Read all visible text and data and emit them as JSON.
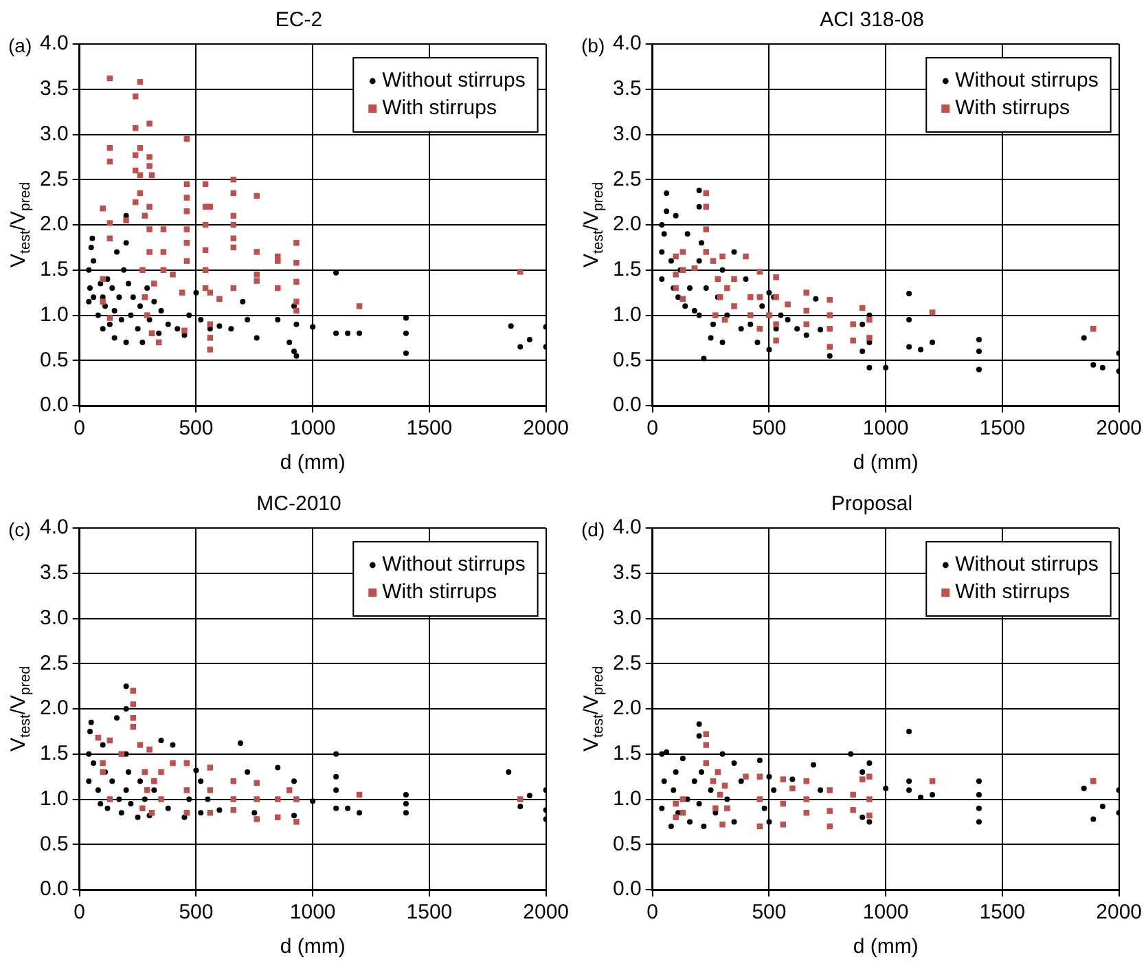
{
  "chart_data": [
    {
      "type": "scatter",
      "title": "EC-2",
      "xlabel": "d (mm)",
      "ylabel": "V$_{test}$/V$_{pred}$",
      "annotations": [
        "(a)"
      ],
      "xlim": [
        0,
        2000
      ],
      "xticks": [
        0,
        500,
        1000,
        1500,
        2000
      ],
      "ylim": [
        0,
        4
      ],
      "yticks": [
        {
          "value": 0,
          "label": "0.0"
        },
        0.5,
        {
          "value": 1,
          "label": "1.0"
        },
        1.5,
        {
          "value": 2,
          "label": "2.0"
        },
        2.5,
        {
          "value": 3,
          "label": "3.0"
        },
        3.5,
        {
          "value": 4,
          "label": "4.0"
        }
      ],
      "grid": true,
      "legend": "top right",
      "series": [
        {
          "name": "Without stirrups",
          "color": "#000000",
          "marker": "circle",
          "x": [
            40,
            40,
            45,
            50,
            55,
            60,
            60,
            80,
            90,
            100,
            100,
            110,
            120,
            130,
            140,
            150,
            150,
            160,
            170,
            180,
            190,
            200,
            200,
            200,
            210,
            220,
            230,
            250,
            260,
            270,
            290,
            300,
            320,
            340,
            350,
            380,
            420,
            450,
            470,
            500,
            520,
            560,
            600,
            650,
            700,
            720,
            760,
            850,
            900,
            920,
            920,
            930,
            930,
            1000,
            1100,
            1100,
            1150,
            1200,
            1400,
            1400,
            1400,
            1850,
            1890,
            1930,
            2000,
            2000
          ],
          "values": [
            1.15,
            1.5,
            1.3,
            1.75,
            1.85,
            1.6,
            1.2,
            1.0,
            1.35,
            0.85,
            1.2,
            1.1,
            1.4,
            0.9,
            1.3,
            0.75,
            1.05,
            1.7,
            1.2,
            0.95,
            1.5,
            2.1,
            1.8,
            0.7,
            1.35,
            1.0,
            1.2,
            0.85,
            1.1,
            0.7,
            1.3,
            0.95,
            1.15,
            0.8,
            1.05,
            0.9,
            0.85,
            0.78,
            1.0,
            1.25,
            0.95,
            0.85,
            0.88,
            0.85,
            1.15,
            0.95,
            0.75,
            0.95,
            0.7,
            1.1,
            0.6,
            0.9,
            0.55,
            0.87,
            1.47,
            0.8,
            0.8,
            0.8,
            0.58,
            0.8,
            0.97,
            0.88,
            0.65,
            0.73,
            0.65,
            0.87
          ]
        },
        {
          "name": "With stirrups",
          "color": "#c0504d",
          "marker": "square",
          "x": [
            100,
            100,
            100,
            130,
            130,
            130,
            130,
            130,
            130,
            200,
            240,
            240,
            240,
            240,
            240,
            260,
            260,
            260,
            260,
            280,
            300,
            300,
            300,
            300,
            300,
            300,
            310,
            270,
            280,
            290,
            310,
            320,
            340,
            360,
            360,
            360,
            400,
            440,
            450,
            460,
            460,
            460,
            460,
            460,
            460,
            460,
            540,
            540,
            540,
            540,
            540,
            540,
            560,
            560,
            560,
            560,
            560,
            600,
            660,
            660,
            660,
            660,
            660,
            660,
            660,
            760,
            760,
            760,
            760,
            850,
            850,
            850,
            930,
            930,
            930,
            930,
            930,
            1200,
            1890
          ],
          "values": [
            2.18,
            1.4,
            1.15,
            3.62,
            2.85,
            2.7,
            2.02,
            1.85,
            0.97,
            2.05,
            3.42,
            3.07,
            2.77,
            2.6,
            2.25,
            3.58,
            2.85,
            2.55,
            2.35,
            2.1,
            3.12,
            2.75,
            2.65,
            2.2,
            1.95,
            1.7,
            2.55,
            1.5,
            1.2,
            1.0,
            0.8,
            1.35,
            0.7,
            1.95,
            1.7,
            1.5,
            1.45,
            1.25,
            0.83,
            2.95,
            2.45,
            2.3,
            2.15,
            1.95,
            1.8,
            1.6,
            2.45,
            2.2,
            2.0,
            1.72,
            1.5,
            1.3,
            2.2,
            1.25,
            0.9,
            0.75,
            0.62,
            1.18,
            2.5,
            2.35,
            2.1,
            2.0,
            1.85,
            1.75,
            1.3,
            2.32,
            1.7,
            1.45,
            1.38,
            1.65,
            1.6,
            1.3,
            1.8,
            1.58,
            1.37,
            1.15,
            1.05,
            1.1,
            1.48
          ]
        }
      ]
    },
    {
      "type": "scatter",
      "title": "ACI 318-08",
      "xlabel": "d (mm)",
      "ylabel": "V$_{test}$/V$_{pred}$",
      "annotations": [
        "(b)"
      ],
      "xlim": [
        0,
        2000
      ],
      "xticks": [
        0,
        500,
        1000,
        1500,
        2000
      ],
      "ylim": [
        0,
        4
      ],
      "yticks": [
        {
          "value": 0,
          "label": "0.0"
        },
        0.5,
        {
          "value": 1,
          "label": "1.0"
        },
        1.5,
        {
          "value": 2,
          "label": "2.0"
        },
        2.5,
        {
          "value": 3,
          "label": "3.0"
        },
        3.5,
        {
          "value": 4,
          "label": "4.0"
        }
      ],
      "grid": true,
      "legend": "top right",
      "series": [
        {
          "name": "Without stirrups",
          "color": "#000000",
          "marker": "circle",
          "x": [
            40,
            40,
            40,
            50,
            60,
            60,
            80,
            90,
            100,
            110,
            120,
            140,
            150,
            160,
            180,
            200,
            200,
            200,
            200,
            210,
            220,
            230,
            250,
            260,
            280,
            300,
            300,
            320,
            350,
            380,
            400,
            420,
            450,
            470,
            500,
            500,
            520,
            530,
            550,
            580,
            620,
            660,
            700,
            720,
            760,
            900,
            900,
            930,
            930,
            930,
            1000,
            1100,
            1100,
            1100,
            1150,
            1200,
            1400,
            1400,
            1400,
            1850,
            1890,
            1930,
            2000,
            2000
          ],
          "values": [
            1.4,
            1.7,
            2.0,
            1.9,
            2.35,
            2.15,
            1.6,
            1.3,
            2.1,
            1.2,
            1.5,
            1.1,
            1.9,
            1.3,
            1.05,
            2.38,
            2.2,
            1.0,
            1.6,
            1.8,
            0.52,
            1.3,
            0.75,
            0.9,
            1.2,
            0.7,
            1.5,
            1.0,
            1.7,
            0.85,
            1.4,
            0.9,
            0.7,
            1.1,
            0.62,
            1.25,
            1.2,
            0.85,
            1.0,
            0.95,
            0.85,
            0.78,
            1.18,
            0.84,
            0.55,
            0.6,
            0.9,
            0.42,
            0.7,
            1.0,
            0.42,
            1.24,
            0.95,
            0.65,
            0.62,
            0.7,
            0.4,
            0.6,
            0.73,
            0.75,
            0.45,
            0.42,
            0.38,
            0.58
          ]
        },
        {
          "name": "With stirrups",
          "color": "#c0504d",
          "marker": "square",
          "x": [
            100,
            100,
            100,
            130,
            130,
            130,
            180,
            230,
            230,
            230,
            230,
            260,
            270,
            280,
            290,
            300,
            310,
            320,
            350,
            350,
            400,
            420,
            420,
            460,
            460,
            460,
            500,
            530,
            530,
            530,
            530,
            580,
            660,
            660,
            660,
            760,
            760,
            760,
            760,
            860,
            860,
            900,
            930,
            930,
            1200,
            1890
          ],
          "values": [
            1.65,
            1.45,
            1.3,
            1.7,
            1.5,
            1.18,
            1.52,
            2.35,
            2.2,
            1.95,
            1.7,
            1.6,
            1.0,
            1.4,
            1.2,
            1.65,
            0.95,
            1.3,
            1.4,
            1.1,
            1.65,
            1.2,
            1.0,
            1.48,
            1.2,
            0.85,
            1.0,
            1.42,
            1.2,
            0.9,
            0.72,
            1.12,
            1.25,
            1.05,
            0.9,
            1.17,
            1.0,
            0.85,
            0.65,
            0.9,
            0.72,
            1.08,
            0.95,
            0.75,
            1.03,
            0.85
          ]
        }
      ]
    },
    {
      "type": "scatter",
      "title": "MC-2010",
      "xlabel": "d (mm)",
      "ylabel": "V$_{test}$/V$_{pred}$",
      "annotations": [
        "(c)"
      ],
      "xlim": [
        0,
        2000
      ],
      "xticks": [
        0,
        500,
        1000,
        1500,
        2000
      ],
      "ylim": [
        0,
        4
      ],
      "yticks": [
        {
          "value": 0,
          "label": "0.0"
        },
        0.5,
        {
          "value": 1,
          "label": "1.0"
        },
        1.5,
        {
          "value": 2,
          "label": "2.0"
        },
        2.5,
        {
          "value": 3,
          "label": "3.0"
        },
        3.5,
        {
          "value": 4,
          "label": "4.0"
        }
      ],
      "grid": true,
      "legend": "top right",
      "series": [
        {
          "name": "Without stirrups",
          "color": "#000000",
          "marker": "circle",
          "x": [
            40,
            40,
            45,
            50,
            60,
            80,
            90,
            100,
            110,
            120,
            140,
            160,
            170,
            180,
            200,
            200,
            200,
            200,
            210,
            220,
            250,
            260,
            280,
            300,
            320,
            350,
            380,
            400,
            450,
            470,
            500,
            520,
            520,
            550,
            600,
            690,
            720,
            750,
            850,
            920,
            920,
            1000,
            1100,
            1100,
            1100,
            1100,
            1150,
            1200,
            1400,
            1400,
            1400,
            1840,
            1890,
            1930,
            2000,
            2000,
            2000
          ],
          "values": [
            1.2,
            1.5,
            1.75,
            1.85,
            1.4,
            1.1,
            0.95,
            1.6,
            1.3,
            0.9,
            1.2,
            1.9,
            1.0,
            0.85,
            2.25,
            2.0,
            1.5,
            1.1,
            1.3,
            0.95,
            0.8,
            1.2,
            1.0,
            0.82,
            1.1,
            1.65,
            0.9,
            1.6,
            0.8,
            1.0,
            1.32,
            0.85,
            1.2,
            1.0,
            0.88,
            1.62,
            1.3,
            0.85,
            1.35,
            1.2,
            0.82,
            0.98,
            1.5,
            1.25,
            1.1,
            0.9,
            0.9,
            0.85,
            0.85,
            0.95,
            1.05,
            1.3,
            0.92,
            1.04,
            0.78,
            0.88,
            1.1
          ]
        },
        {
          "name": "With stirrups",
          "color": "#c0504d",
          "marker": "square",
          "x": [
            80,
            100,
            100,
            130,
            130,
            180,
            230,
            230,
            230,
            230,
            260,
            270,
            280,
            290,
            300,
            310,
            320,
            350,
            350,
            400,
            460,
            460,
            460,
            560,
            560,
            560,
            660,
            660,
            660,
            760,
            760,
            760,
            850,
            850,
            900,
            930,
            930,
            1200,
            1890
          ],
          "values": [
            1.68,
            1.4,
            1.3,
            1.65,
            1.0,
            1.5,
            2.2,
            2.05,
            1.9,
            1.8,
            1.6,
            0.9,
            1.3,
            1.1,
            1.55,
            0.85,
            1.2,
            1.3,
            1.0,
            1.4,
            1.4,
            1.1,
            0.85,
            1.35,
            1.1,
            0.85,
            1.2,
            1.0,
            0.88,
            1.18,
            1.0,
            0.78,
            1.0,
            0.8,
            1.1,
            1.0,
            0.75,
            1.05,
            1.0
          ]
        }
      ]
    },
    {
      "type": "scatter",
      "title": "Proposal",
      "xlabel": "d (mm)",
      "ylabel": "V$_{test}$/V$_{pred}$",
      "annotations": [
        "(d)"
      ],
      "xlim": [
        0,
        2000
      ],
      "xticks": [
        0,
        500,
        1000,
        1500,
        2000
      ],
      "ylim": [
        0,
        4
      ],
      "yticks": [
        {
          "value": 0,
          "label": "0.0"
        },
        0.5,
        {
          "value": 1,
          "label": "1.0"
        },
        1.5,
        {
          "value": 2,
          "label": "2.0"
        },
        2.5,
        {
          "value": 3,
          "label": "3.0"
        },
        3.5,
        {
          "value": 4,
          "label": "4.0"
        }
      ],
      "grid": true,
      "legend": "top right",
      "series": [
        {
          "name": "Without stirrups",
          "color": "#000000",
          "marker": "circle",
          "x": [
            40,
            40,
            50,
            60,
            80,
            90,
            100,
            110,
            130,
            150,
            160,
            180,
            200,
            200,
            200,
            210,
            220,
            250,
            270,
            300,
            320,
            350,
            350,
            380,
            460,
            480,
            500,
            500,
            520,
            600,
            690,
            720,
            850,
            900,
            900,
            930,
            930,
            1000,
            1100,
            1100,
            1100,
            1150,
            1200,
            1400,
            1400,
            1400,
            1400,
            1850,
            1890,
            1930,
            2000,
            2000
          ],
          "values": [
            0.9,
            1.5,
            1.2,
            1.52,
            0.7,
            1.1,
            1.3,
            0.85,
            1.45,
            1.0,
            0.75,
            1.2,
            1.83,
            1.7,
            0.95,
            1.3,
            0.7,
            1.1,
            0.85,
            1.5,
            1.0,
            0.75,
            1.4,
            1.2,
            1.43,
            0.9,
            0.75,
            1.25,
            1.1,
            1.22,
            1.38,
            1.1,
            1.5,
            0.8,
            1.3,
            1.4,
            0.75,
            1.12,
            1.75,
            1.2,
            1.1,
            1.02,
            1.05,
            0.75,
            0.9,
            1.05,
            1.2,
            1.12,
            0.78,
            0.92,
            0.85,
            1.1
          ]
        },
        {
          "name": "With stirrups",
          "color": "#c0504d",
          "marker": "square",
          "x": [
            100,
            100,
            130,
            130,
            230,
            230,
            230,
            260,
            270,
            280,
            290,
            300,
            310,
            320,
            400,
            460,
            460,
            460,
            560,
            560,
            560,
            600,
            660,
            660,
            660,
            760,
            760,
            760,
            860,
            860,
            900,
            930,
            930,
            930,
            1200,
            1890
          ],
          "values": [
            0.95,
            0.8,
            1.0,
            0.85,
            1.72,
            1.6,
            1.4,
            1.2,
            0.9,
            1.3,
            1.05,
            0.72,
            1.15,
            0.9,
            1.25,
            1.25,
            1.0,
            0.7,
            1.22,
            0.95,
            0.72,
            1.12,
            1.2,
            1.0,
            0.85,
            1.1,
            0.87,
            0.7,
            1.05,
            0.88,
            1.22,
            1.25,
            1.0,
            0.82,
            1.2,
            1.2
          ]
        }
      ]
    }
  ]
}
